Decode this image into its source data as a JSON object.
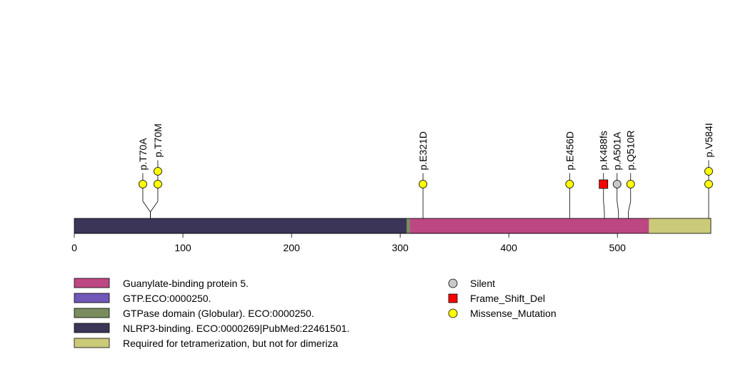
{
  "protein": {
    "length": 586,
    "axis_ticks": [
      0,
      100,
      200,
      300,
      400,
      500
    ],
    "domains": [
      {
        "name": "NLRP3-binding. ECO:0000269|PubMed:22461501.",
        "start": 0,
        "end": 306,
        "color": "#3b3658"
      },
      {
        "name": "GTPase domain (Globular). ECO:0000250.",
        "start": 306,
        "end": 309,
        "color": "#7a8b5e"
      },
      {
        "name": "Guanylate-binding protein 5.",
        "start": 309,
        "end": 529,
        "color": "#bd4783"
      },
      {
        "name": "Required for tetramerization, but not for dimeriza",
        "start": 529,
        "end": 586,
        "color": "#cbca78"
      }
    ]
  },
  "mutations": [
    {
      "label": "p.T70A",
      "position": 70,
      "type": "Missense_Mutation",
      "stack": 1
    },
    {
      "label": "p.T70M",
      "position": 70,
      "type": "Missense_Mutation",
      "stack": 2
    },
    {
      "label": "p.E321D",
      "position": 321,
      "type": "Missense_Mutation",
      "stack": 1
    },
    {
      "label": "p.E456D",
      "position": 456,
      "type": "Missense_Mutation",
      "stack": 1
    },
    {
      "label": "p.K488fs",
      "position": 488,
      "type": "Frame_Shift_Del",
      "stack": 1
    },
    {
      "label": "p.A501A",
      "position": 501,
      "type": "Silent",
      "stack": 1
    },
    {
      "label": "p.Q510R",
      "position": 510,
      "type": "Missense_Mutation",
      "stack": 1
    },
    {
      "label": "p.V584I",
      "position": 584,
      "type": "Missense_Mutation",
      "stack": 2
    }
  ],
  "legend_domains": [
    {
      "label": "Guanylate-binding protein 5.",
      "color": "#bd4783"
    },
    {
      "label": "GTP.ECO:0000250.",
      "color": "#7057b8"
    },
    {
      "label": "GTPase domain (Globular). ECO:0000250.",
      "color": "#7a8b5e"
    },
    {
      "label": "NLRP3-binding. ECO:0000269|PubMed:22461501.",
      "color": "#3b3658"
    },
    {
      "label": "Required for tetramerization, but not for dimeriza",
      "color": "#cbca78"
    }
  ],
  "legend_mutation_types": [
    {
      "label": "Silent",
      "shape": "circle",
      "color": "#c8c8c8"
    },
    {
      "label": "Frame_Shift_Del",
      "shape": "square",
      "color": "#ff0000"
    },
    {
      "label": "Missense_Mutation",
      "shape": "circle",
      "color": "#ffff00"
    }
  ]
}
